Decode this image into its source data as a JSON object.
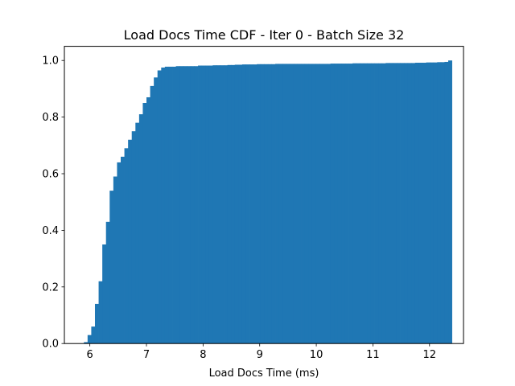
{
  "chart_data": {
    "type": "bar",
    "title": "Load Docs Time CDF - Iter 0 - Batch Size 32",
    "xlabel": "Load Docs Time (ms)",
    "ylabel": "",
    "xlim": [
      5.55,
      12.6
    ],
    "ylim": [
      0,
      1.05
    ],
    "xticks": [
      6,
      7,
      8,
      9,
      10,
      11,
      12
    ],
    "yticks": [
      0.0,
      0.2,
      0.4,
      0.6,
      0.8,
      1.0
    ],
    "bin_start": 5.83,
    "bin_width": 0.065,
    "values": [
      0.0,
      0.005,
      0.03,
      0.06,
      0.14,
      0.22,
      0.35,
      0.43,
      0.54,
      0.59,
      0.64,
      0.66,
      0.69,
      0.72,
      0.75,
      0.78,
      0.81,
      0.85,
      0.87,
      0.91,
      0.94,
      0.965,
      0.975,
      0.978,
      0.978,
      0.978,
      0.98,
      0.98,
      0.98,
      0.98,
      0.98,
      0.98,
      0.982,
      0.982,
      0.982,
      0.982,
      0.983,
      0.983,
      0.983,
      0.983,
      0.984,
      0.984,
      0.985,
      0.985,
      0.986,
      0.986,
      0.986,
      0.986,
      0.987,
      0.987,
      0.987,
      0.987,
      0.987,
      0.988,
      0.988,
      0.988,
      0.988,
      0.988,
      0.988,
      0.988,
      0.988,
      0.988,
      0.988,
      0.988,
      0.988,
      0.988,
      0.988,
      0.988,
      0.989,
      0.989,
      0.989,
      0.989,
      0.989,
      0.989,
      0.99,
      0.99,
      0.99,
      0.99,
      0.99,
      0.99,
      0.99,
      0.99,
      0.99,
      0.991,
      0.991,
      0.991,
      0.991,
      0.991,
      0.991,
      0.991,
      0.991,
      0.992,
      0.992,
      0.992,
      0.993,
      0.993,
      0.993,
      0.994,
      0.994,
      0.995,
      1.0
    ],
    "color": "#1f77b4",
    "grid": false
  }
}
